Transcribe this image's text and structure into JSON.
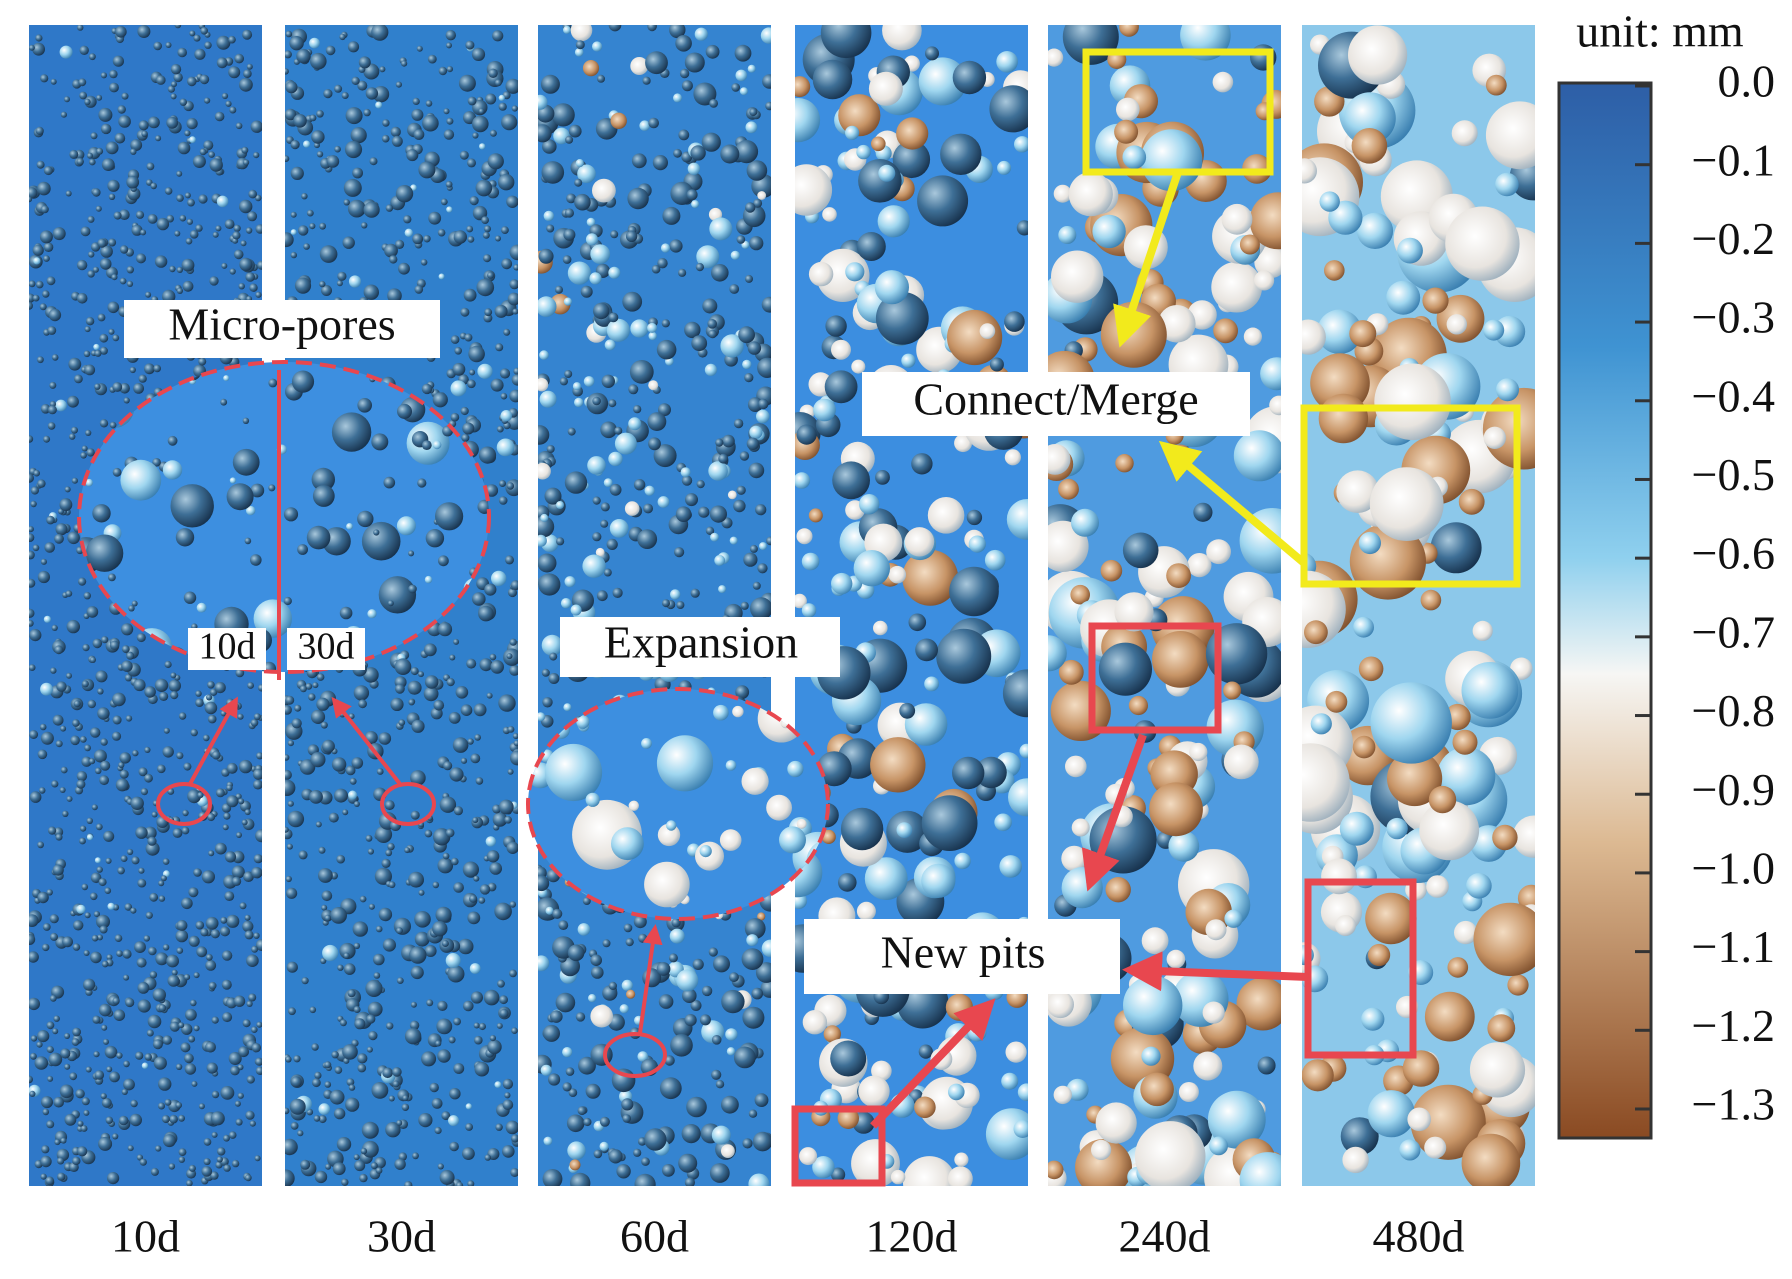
{
  "panels": [
    {
      "label": "10d"
    },
    {
      "label": "30d"
    },
    {
      "label": "60d"
    },
    {
      "label": "120d"
    },
    {
      "label": "240d"
    },
    {
      "label": "480d"
    }
  ],
  "colorbar": {
    "unit": "unit: mm",
    "ticks": [
      {
        "value": 0,
        "label": "0.0"
      },
      {
        "value": -0.1,
        "label": "−0.1"
      },
      {
        "value": -0.2,
        "label": "−0.2"
      },
      {
        "value": -0.3,
        "label": "−0.3"
      },
      {
        "value": -0.4,
        "label": "−0.4"
      },
      {
        "value": -0.5,
        "label": "−0.5"
      },
      {
        "value": -0.6,
        "label": "−0.6"
      },
      {
        "value": -0.7,
        "label": "−0.7"
      },
      {
        "value": -0.8,
        "label": "−0.8"
      },
      {
        "value": -0.9,
        "label": "−0.9"
      },
      {
        "value": -1.0,
        "label": "−1.0"
      },
      {
        "value": -1.1,
        "label": "−1.1"
      },
      {
        "value": -1.2,
        "label": "−1.2"
      },
      {
        "value": -1.3,
        "label": "−1.3"
      }
    ]
  },
  "annotations": {
    "micro_pores": "Micro-pores",
    "inset_left": "10d",
    "inset_right": "30d",
    "expansion": "Expansion",
    "connect_merge": "Connect/Merge",
    "new_pits": "New pits"
  }
}
